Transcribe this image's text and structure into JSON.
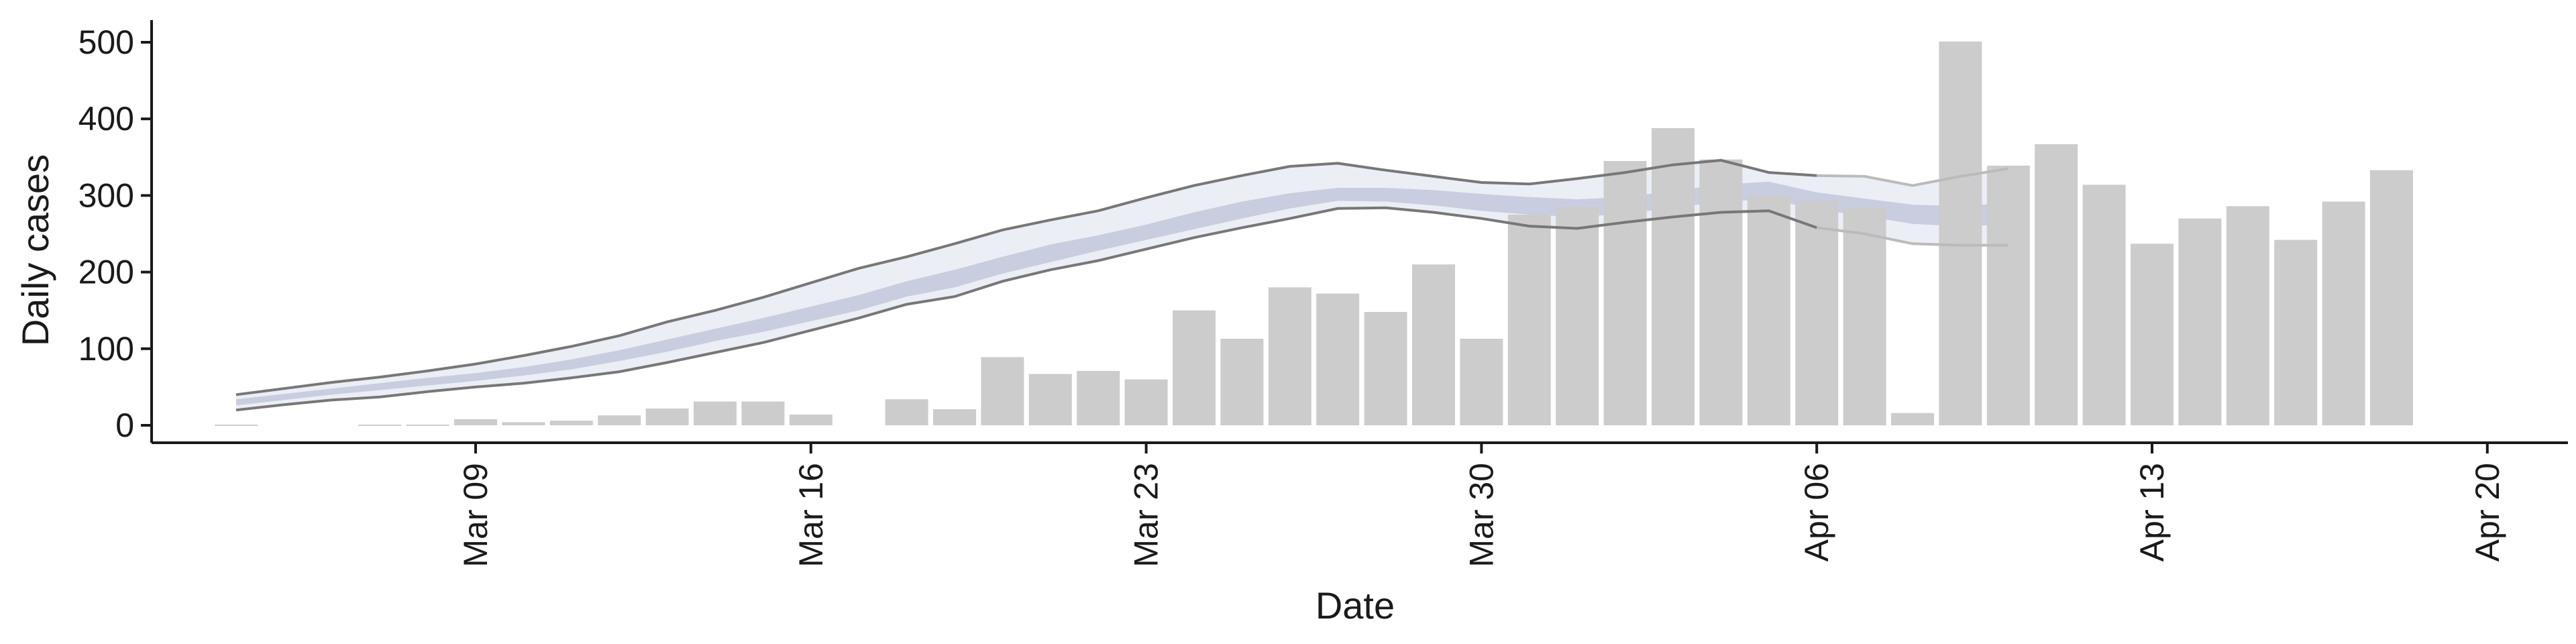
{
  "chart_data": {
    "type": "bar",
    "xlabel": "Date",
    "ylabel": "Daily cases",
    "ylim": [
      -20,
      530
    ],
    "y_ticks": [
      0,
      100,
      200,
      300,
      400,
      500
    ],
    "x_ticks": [
      "Mar 09",
      "Mar 16",
      "Mar 23",
      "Mar 30",
      "Apr 06",
      "Apr 13",
      "Apr 20"
    ],
    "grid": false,
    "colors": {
      "bar": "#cccccc",
      "band_outer": "#e6e8f1",
      "band_inner": "#c4c9dd",
      "bound_line": "#777777",
      "projection_line": "#bbbbbb",
      "axis": "#1a1a1a"
    },
    "bars": {
      "name": "Daily cases",
      "x": [
        "Mar 04",
        "Mar 05",
        "Mar 06",
        "Mar 07",
        "Mar 08",
        "Mar 09",
        "Mar 10",
        "Mar 11",
        "Mar 12",
        "Mar 13",
        "Mar 14",
        "Mar 15",
        "Mar 16",
        "Mar 17",
        "Mar 18",
        "Mar 19",
        "Mar 20",
        "Mar 21",
        "Mar 22",
        "Mar 23",
        "Mar 24",
        "Mar 25",
        "Mar 26",
        "Mar 27",
        "Mar 28",
        "Mar 29",
        "Mar 30",
        "Mar 31",
        "Apr 01",
        "Apr 02",
        "Apr 03",
        "Apr 04",
        "Apr 05",
        "Apr 06",
        "Apr 07",
        "Apr 08",
        "Apr 09",
        "Apr 10",
        "Apr 11",
        "Apr 12",
        "Apr 13",
        "Apr 14",
        "Apr 15",
        "Apr 16",
        "Apr 17",
        "Apr 18",
        "Apr 19"
      ],
      "values": [
        1,
        0,
        0,
        1,
        1,
        8,
        4,
        6,
        13,
        22,
        31,
        31,
        14,
        0,
        34,
        21,
        89,
        67,
        71,
        60,
        150,
        113,
        180,
        172,
        148,
        210,
        113,
        275,
        285,
        345,
        388,
        347,
        300,
        293,
        284,
        16,
        501,
        339,
        367,
        314,
        237,
        270,
        286,
        242,
        292,
        333,
        0
      ]
    },
    "estimate": {
      "x": [
        "Mar 04",
        "Mar 05",
        "Mar 06",
        "Mar 07",
        "Mar 08",
        "Mar 09",
        "Mar 10",
        "Mar 11",
        "Mar 12",
        "Mar 13",
        "Mar 14",
        "Mar 15",
        "Mar 16",
        "Mar 17",
        "Mar 18",
        "Mar 19",
        "Mar 20",
        "Mar 21",
        "Mar 22",
        "Mar 23",
        "Mar 24",
        "Mar 25",
        "Mar 26",
        "Mar 27",
        "Mar 28",
        "Mar 29",
        "Mar 30",
        "Mar 31",
        "Apr 01",
        "Apr 02",
        "Apr 03",
        "Apr 04",
        "Apr 05",
        "Apr 06",
        "Apr 07",
        "Apr 08",
        "Apr 09",
        "Apr 10"
      ],
      "lower_90": [
        20,
        27,
        33,
        37,
        44,
        50,
        55,
        62,
        70,
        82,
        95,
        108,
        124,
        140,
        158,
        168,
        188,
        203,
        215,
        230,
        245,
        258,
        270,
        283,
        284,
        278,
        270,
        260,
        257,
        265,
        272,
        278,
        280,
        258,
        250,
        237,
        235,
        235
      ],
      "lower_50": [
        26,
        33,
        40,
        46,
        52,
        58,
        65,
        73,
        84,
        96,
        110,
        122,
        136,
        150,
        168,
        180,
        198,
        213,
        228,
        242,
        256,
        270,
        283,
        293,
        292,
        287,
        280,
        275,
        272,
        276,
        284,
        292,
        295,
        282,
        273,
        263,
        260,
        262
      ],
      "upper_50": [
        34,
        41,
        48,
        55,
        62,
        68,
        76,
        86,
        98,
        112,
        126,
        140,
        155,
        170,
        188,
        203,
        220,
        236,
        248,
        262,
        278,
        292,
        303,
        310,
        310,
        307,
        302,
        298,
        295,
        298,
        306,
        314,
        318,
        304,
        296,
        288,
        286,
        290
      ],
      "upper_90": [
        40,
        48,
        56,
        63,
        71,
        80,
        91,
        103,
        117,
        135,
        150,
        167,
        186,
        205,
        220,
        237,
        255,
        268,
        280,
        297,
        313,
        326,
        338,
        342,
        333,
        325,
        317,
        315,
        322,
        330,
        340,
        346,
        330,
        326,
        325,
        313,
        325,
        335
      ]
    }
  }
}
